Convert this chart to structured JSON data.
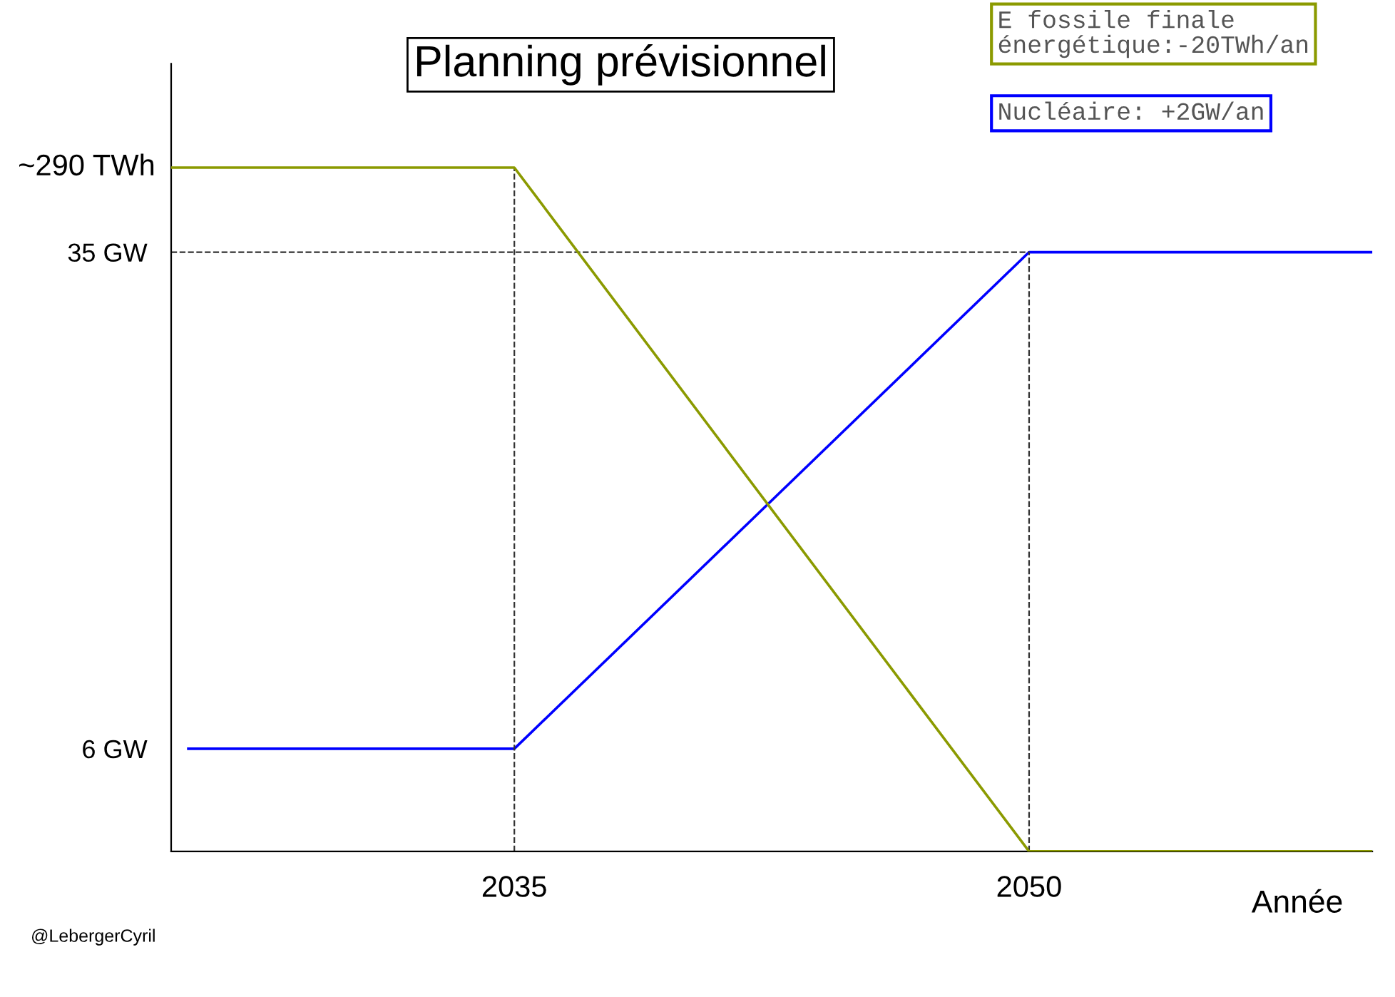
{
  "chart_data": {
    "type": "line",
    "title": "Planning prévisionnel",
    "xlabel": "Année",
    "xlim": [
      2025,
      2060
    ],
    "xticks": [
      2035,
      2050
    ],
    "ylim": [
      0,
      46
    ],
    "y2lim": [
      0,
      334
    ],
    "yticks": [
      {
        "value": 6,
        "label": "6 GW"
      },
      {
        "value": 35,
        "label": "35 GW"
      }
    ],
    "series": [
      {
        "name": "E fossile finale\nénergétique:-20TWh/an",
        "color": "#8b9a00",
        "axis": "y2",
        "x": [
          2025,
          2035,
          2050,
          2060
        ],
        "values": [
          290,
          290,
          0,
          0
        ],
        "value_labels": [
          "~290 TWh",
          null,
          null,
          null
        ]
      },
      {
        "name": "Nucléaire: +2GW/an",
        "color": "#0000ff",
        "axis": "y",
        "x": [
          2025.5,
          2035,
          2050,
          2060
        ],
        "values": [
          6,
          6,
          35,
          35
        ]
      }
    ],
    "ref_lines": [
      {
        "axis": "x",
        "value": 2035,
        "line_style": "dashed",
        "color": "#333333"
      },
      {
        "axis": "x",
        "value": 2050,
        "line_style": "dashed",
        "color": "#333333"
      },
      {
        "axis": "y",
        "value": 35,
        "line_style": "dashed",
        "color": "#333333"
      }
    ],
    "legend": "top right",
    "grid": false,
    "marker": "none",
    "line_style": "solid",
    "annotations": [
      "@LebergerCyril"
    ]
  }
}
